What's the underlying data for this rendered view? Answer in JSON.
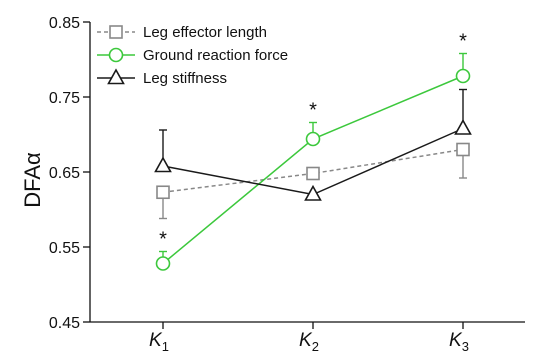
{
  "chart_data": {
    "type": "line",
    "ylabel": "DFAα",
    "ylim": [
      0.45,
      0.85
    ],
    "yticks": [
      0.45,
      0.55,
      0.65,
      0.75,
      0.85
    ],
    "ytick_labels": [
      "0.45",
      "0.55",
      "0.65",
      "0.75",
      "0.85"
    ],
    "categories": [
      {
        "main": "K",
        "sub": "1"
      },
      {
        "main": "K",
        "sub": "2"
      },
      {
        "main": "K",
        "sub": "3"
      }
    ],
    "legend_position": "top-left",
    "grid": false,
    "series": [
      {
        "name": "Leg effector length",
        "color": "#888888",
        "marker": "square",
        "line_style": "dashed",
        "values": [
          0.623,
          0.648,
          0.68
        ],
        "errors": [
          0.035,
          0.0,
          0.038
        ],
        "error_dir": "down",
        "significant": [
          false,
          false,
          false
        ]
      },
      {
        "name": "Ground reaction force",
        "color": "#3cc83c",
        "marker": "circle",
        "line_style": "solid",
        "values": [
          0.528,
          0.694,
          0.778
        ],
        "errors": [
          0.016,
          0.022,
          0.03
        ],
        "error_dir": "up",
        "significant": [
          true,
          true,
          true
        ]
      },
      {
        "name": "Leg stiffness",
        "color": "#1a1a1a",
        "marker": "triangle",
        "line_style": "solid",
        "values": [
          0.658,
          0.62,
          0.708
        ],
        "errors": [
          0.048,
          0.0,
          0.052
        ],
        "error_dir": "up",
        "significant": [
          false,
          false,
          false
        ]
      }
    ],
    "significance_marker": "*"
  }
}
